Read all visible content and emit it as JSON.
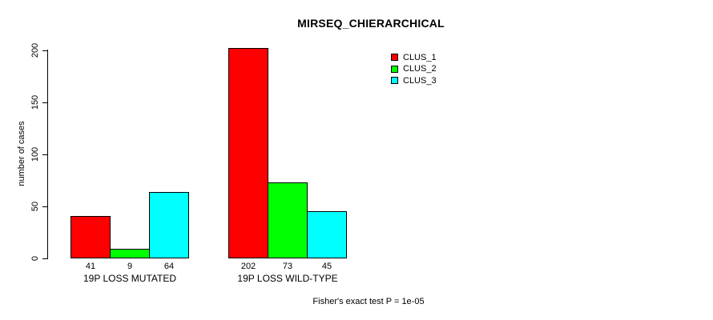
{
  "chart_data": {
    "type": "bar",
    "title": "MIRSEQ_CHIERARCHICAL",
    "categories": [
      "19P LOSS MUTATED",
      "19P LOSS WILD-TYPE"
    ],
    "series": [
      {
        "name": "CLUS_1",
        "color": "#ff0000",
        "values": [
          41,
          202
        ]
      },
      {
        "name": "CLUS_2",
        "color": "#00ff00",
        "values": [
          9,
          73
        ]
      },
      {
        "name": "CLUS_3",
        "color": "#00ffff",
        "values": [
          64,
          45
        ]
      }
    ],
    "xlabel": "",
    "ylabel": "number of cases",
    "ylim": [
      0,
      200
    ],
    "y_ticks": [
      0,
      50,
      100,
      150,
      200
    ],
    "grid": false,
    "bar_value_labels_shown": true,
    "legend_position": "top-right",
    "annotation": "Fisher's exact test P = 1e-05"
  }
}
